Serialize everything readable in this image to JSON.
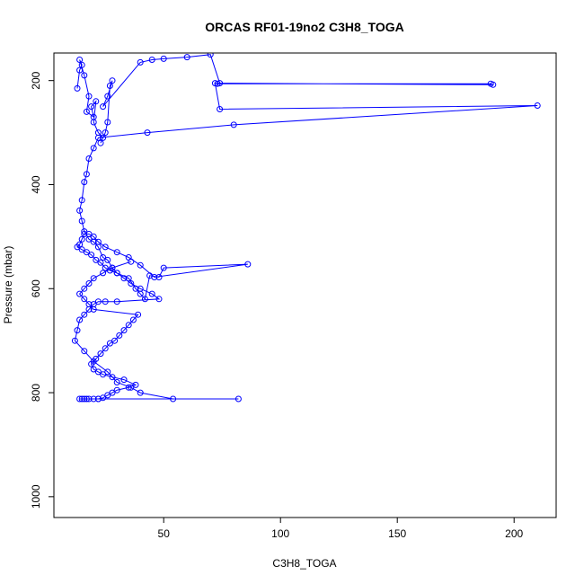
{
  "chart_data": {
    "type": "line",
    "title": "ORCAS RF01-19no2 C3H8_TOGA",
    "xlabel": "C3H8_TOGA",
    "ylabel": "Pressure (mbar)",
    "xlim": [
      3,
      218
    ],
    "ylim": [
      1040,
      147
    ],
    "y_inverted": true,
    "xticks": [
      50,
      100,
      150,
      200
    ],
    "yticks": [
      200,
      400,
      600,
      800,
      1000
    ],
    "grid": false,
    "legend": "none",
    "series_color": "#0000ff",
    "series": [
      {
        "x": [
          13,
          14,
          15,
          14,
          16,
          18,
          17,
          20,
          19,
          21,
          20,
          22,
          24,
          23,
          25,
          26,
          27,
          28,
          26,
          24,
          40,
          45,
          50,
          60,
          70,
          74,
          73,
          190,
          191,
          72,
          74,
          210,
          80,
          43,
          22,
          20,
          18,
          17,
          16,
          15,
          14,
          15,
          16,
          18,
          20,
          22,
          24,
          26,
          28,
          30,
          35,
          38,
          40,
          42,
          44,
          48,
          50,
          86,
          46,
          40,
          35,
          30,
          25,
          22,
          20,
          18,
          16,
          15,
          14,
          13,
          15,
          17,
          19,
          21,
          23,
          25,
          27,
          30,
          33,
          36,
          40,
          45,
          48,
          30,
          25,
          22,
          20,
          18,
          16,
          14,
          13,
          12,
          16,
          20,
          26,
          30,
          36,
          40,
          54,
          82,
          22,
          17,
          15,
          14,
          16,
          18,
          20,
          22,
          24,
          26,
          28,
          30,
          35,
          38,
          33,
          28,
          24,
          22,
          20,
          19,
          21,
          23,
          25,
          27,
          29,
          31,
          33,
          35,
          37,
          39,
          20,
          18,
          16,
          14,
          16,
          18,
          20,
          24,
          28,
          36
        ],
        "y": [
          215,
          180,
          170,
          160,
          190,
          230,
          260,
          270,
          250,
          240,
          280,
          300,
          310,
          320,
          300,
          280,
          210,
          200,
          230,
          250,
          165,
          160,
          158,
          155,
          150,
          205,
          206,
          206,
          208,
          205,
          255,
          248,
          285,
          300,
          310,
          330,
          350,
          380,
          395,
          430,
          450,
          470,
          490,
          505,
          510,
          520,
          540,
          545,
          560,
          570,
          580,
          600,
          610,
          620,
          575,
          578,
          560,
          553,
          578,
          555,
          540,
          530,
          520,
          510,
          500,
          495,
          495,
          505,
          515,
          520,
          525,
          530,
          535,
          545,
          550,
          560,
          565,
          570,
          580,
          590,
          600,
          610,
          620,
          625,
          625,
          625,
          630,
          640,
          650,
          660,
          680,
          700,
          720,
          740,
          760,
          780,
          790,
          800,
          812,
          812,
          812,
          812,
          812,
          812,
          812,
          812,
          812,
          812,
          810,
          805,
          800,
          795,
          790,
          785,
          775,
          770,
          765,
          760,
          755,
          745,
          735,
          725,
          715,
          705,
          700,
          690,
          680,
          670,
          660,
          650,
          640,
          630,
          620,
          610,
          600,
          590,
          580,
          570,
          560,
          548
        ]
      }
    ]
  }
}
